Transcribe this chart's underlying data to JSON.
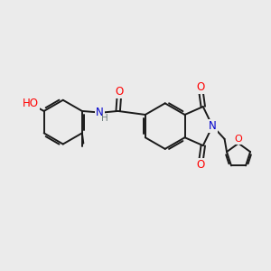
{
  "background_color": "#ebebeb",
  "bond_color": "#1a1a1a",
  "bond_width": 1.4,
  "atom_colors": {
    "O": "#ff0000",
    "N": "#0000cc",
    "C": "#1a1a1a",
    "H": "#708080"
  },
  "font_size_atom": 8.5,
  "font_size_h": 7.5
}
